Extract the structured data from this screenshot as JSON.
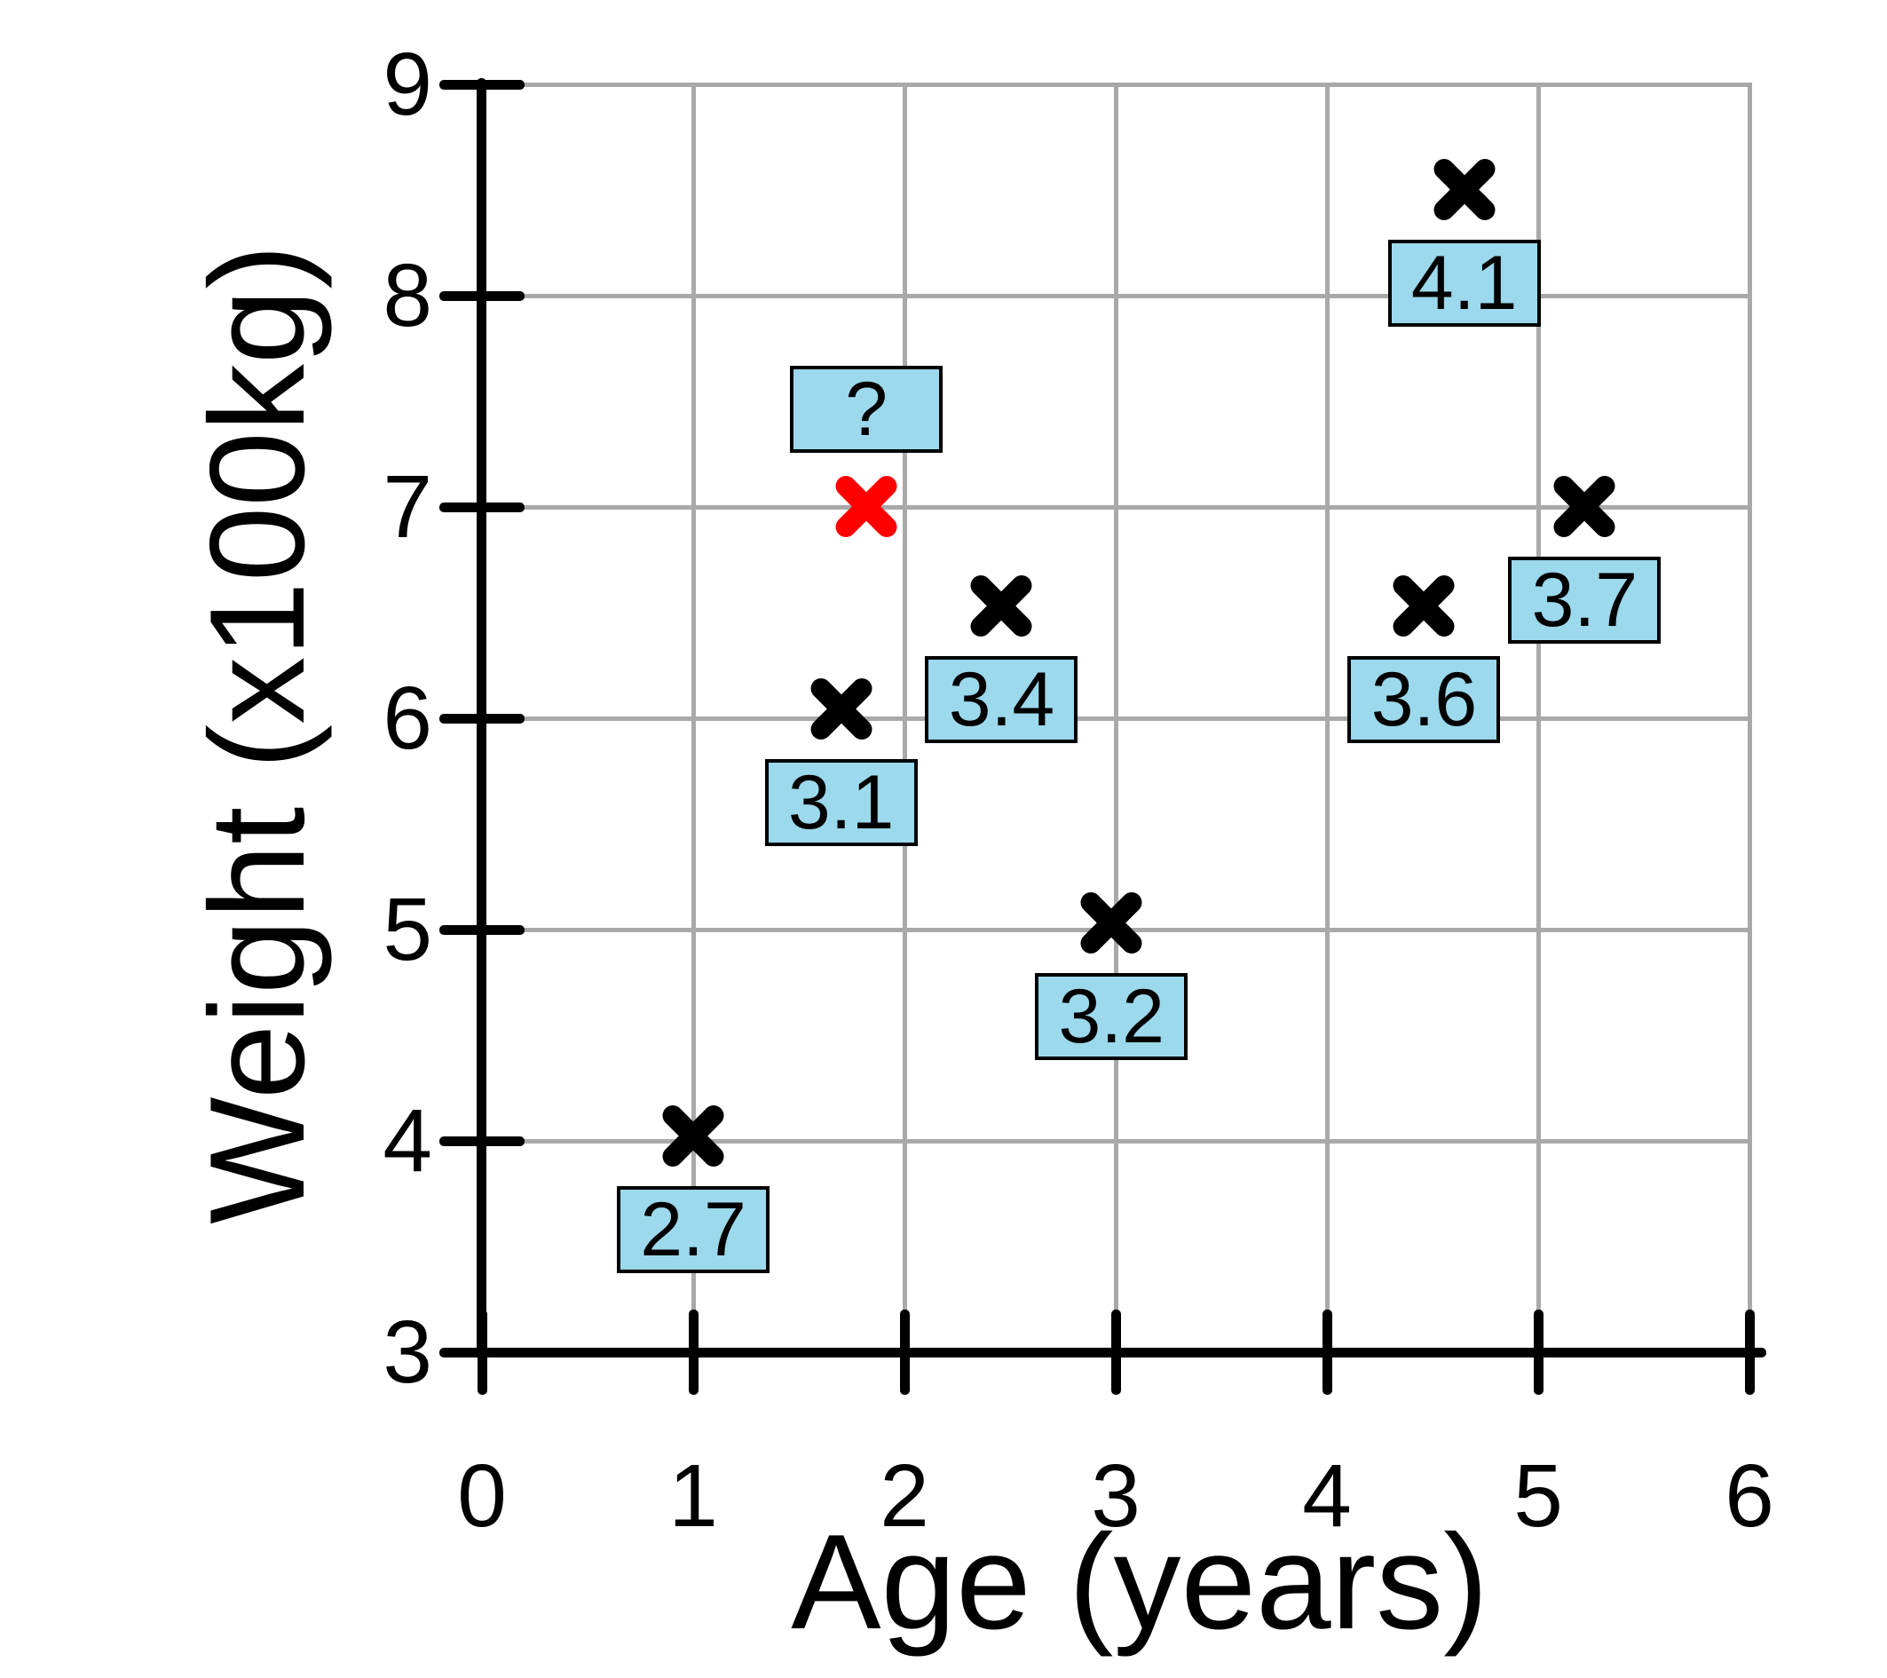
{
  "chart_data": {
    "type": "scatter",
    "title": "",
    "xlabel": "Age (years)",
    "ylabel": "Weight (x100kg)",
    "xlim": [
      0,
      6
    ],
    "ylim": [
      3,
      9
    ],
    "xticks": [
      "0",
      "1",
      "2",
      "3",
      "4",
      "5",
      "6"
    ],
    "yticks": [
      "3",
      "4",
      "5",
      "6",
      "7",
      "8",
      "9"
    ],
    "grid": "on",
    "legend_position": "none",
    "marker_style": "x",
    "marker_color": "#000000",
    "highlight_color": "#ff0000",
    "label_box_fill": "#9cd9ec",
    "label_box_border": "#000000",
    "grid_color": "#a9a9a9",
    "points": [
      {
        "x": 1.0,
        "y": 4.02,
        "label": "2.7",
        "highlight": false,
        "label_pos": "below"
      },
      {
        "x": 1.7,
        "y": 6.04,
        "label": "3.1",
        "highlight": false,
        "label_pos": "below"
      },
      {
        "x": 2.46,
        "y": 6.53,
        "label": "3.4",
        "highlight": false,
        "label_pos": "below"
      },
      {
        "x": 1.82,
        "y": 7.0,
        "label": "?",
        "highlight": true,
        "label_pos": "above"
      },
      {
        "x": 2.98,
        "y": 5.03,
        "label": "3.2",
        "highlight": false,
        "label_pos": "below"
      },
      {
        "x": 4.46,
        "y": 6.53,
        "label": "3.6",
        "highlight": false,
        "label_pos": "below"
      },
      {
        "x": 5.22,
        "y": 7.0,
        "label": "3.7",
        "highlight": false,
        "label_pos": "below"
      },
      {
        "x": 4.65,
        "y": 8.5,
        "label": "4.1",
        "highlight": false,
        "label_pos": "below"
      }
    ]
  }
}
